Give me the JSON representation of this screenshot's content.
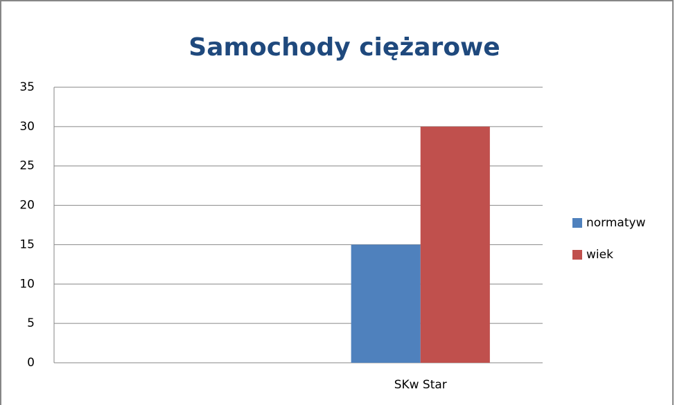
{
  "chart_data": {
    "type": "bar",
    "title": "Samochody ciężarowe",
    "categories": [
      null,
      "SKw Star"
    ],
    "series": [
      {
        "name": "normatyw",
        "color": "#4f81bd",
        "values": [
          null,
          15
        ]
      },
      {
        "name": "wiek",
        "color": "#c0504d",
        "values": [
          null,
          30
        ]
      }
    ],
    "ylim": [
      0,
      35
    ],
    "yticks": [
      0,
      5,
      10,
      15,
      20,
      25,
      30,
      35
    ],
    "grid": true,
    "legend": "right"
  }
}
